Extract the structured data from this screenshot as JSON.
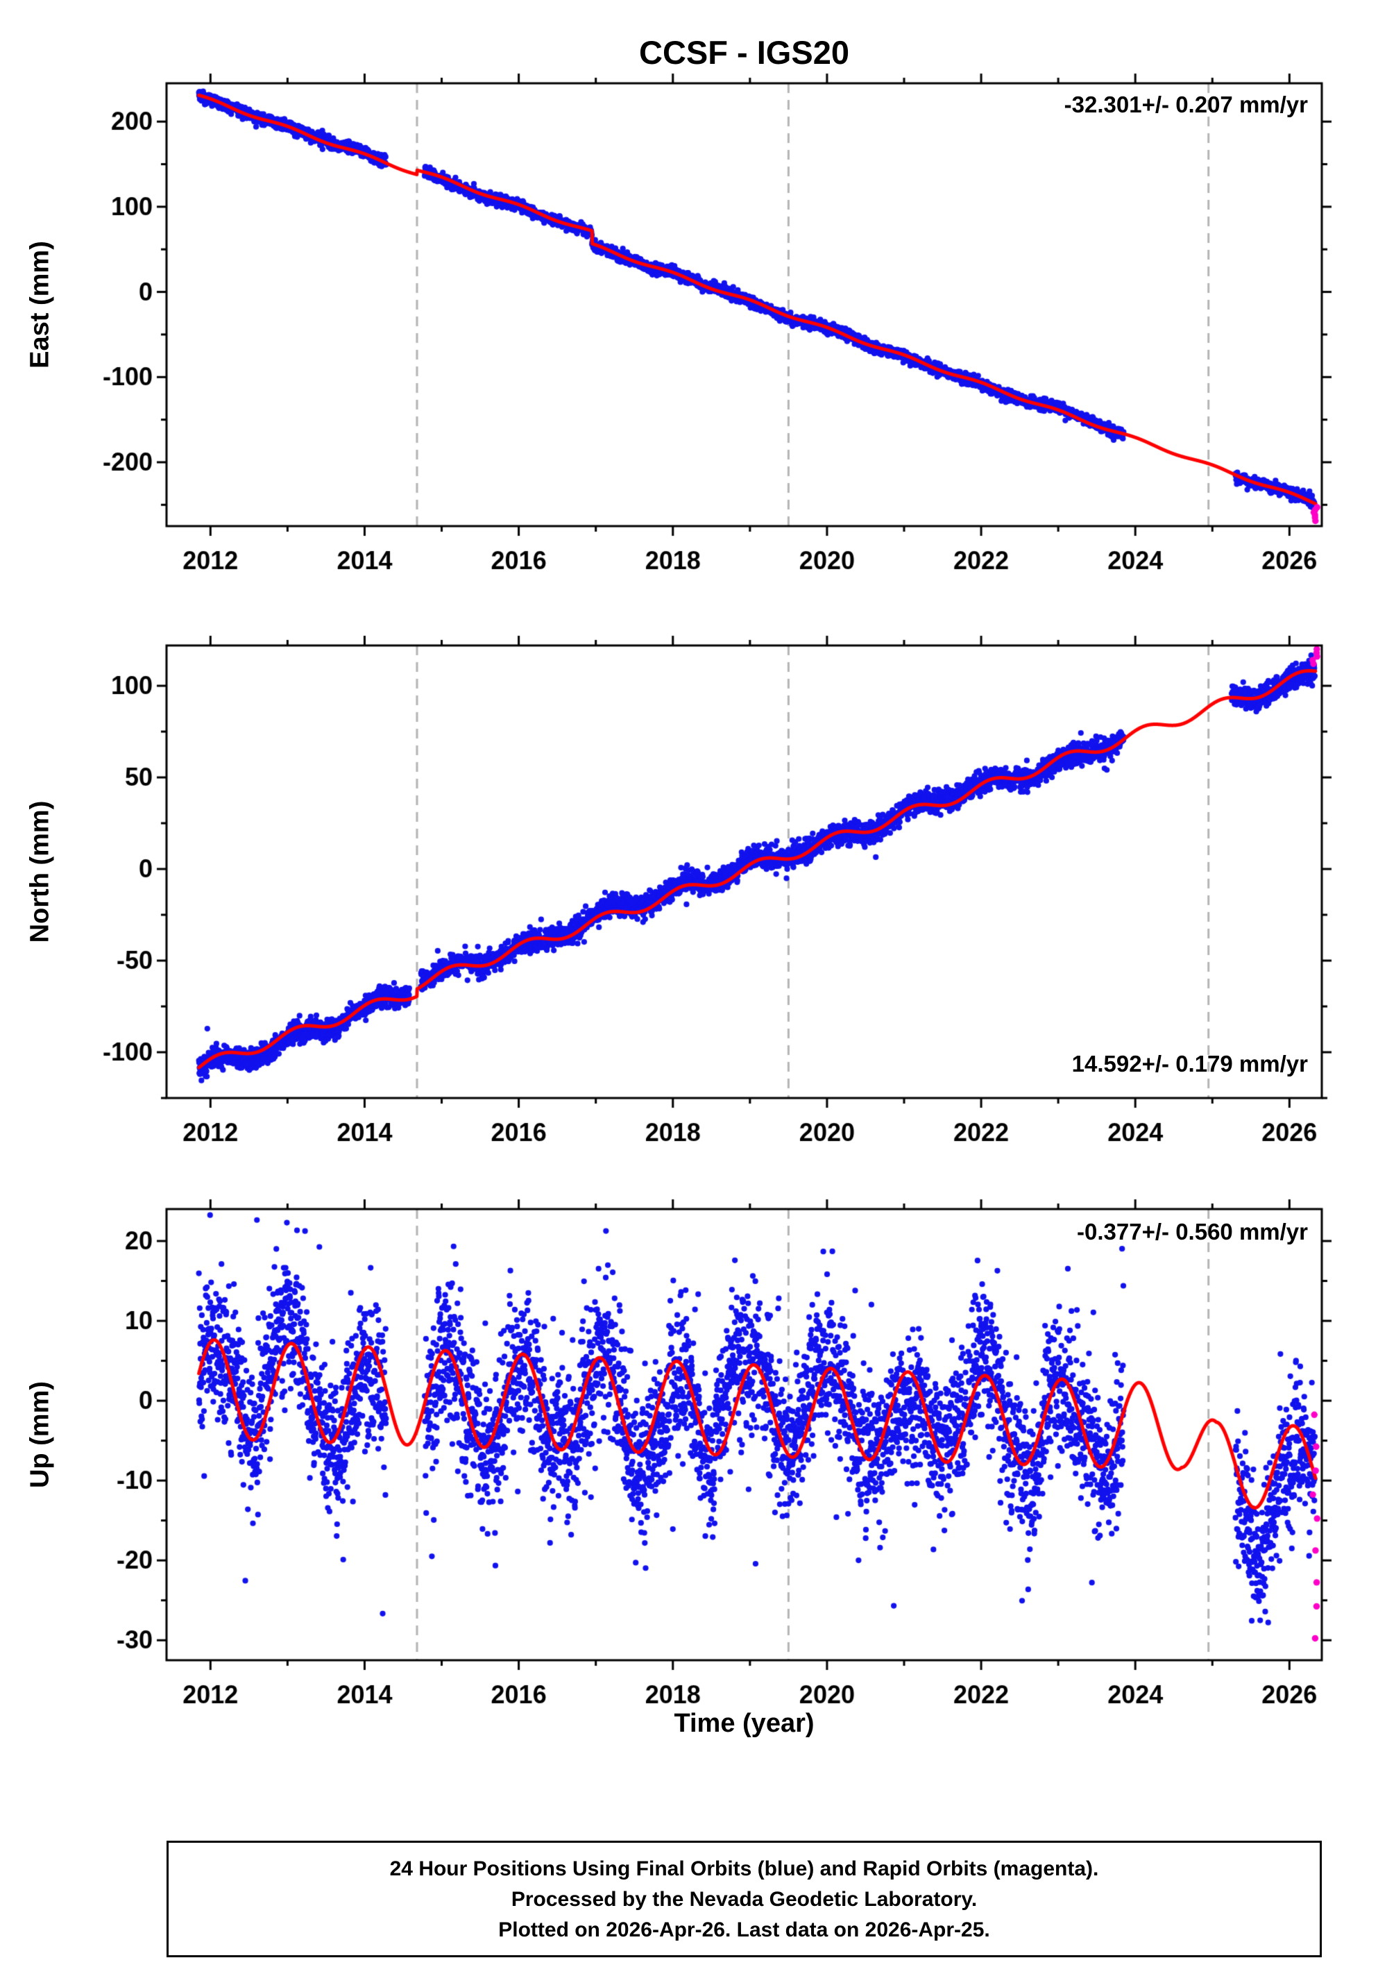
{
  "title": "CCSF - IGS20",
  "xlabel": "Time (year)",
  "footer": {
    "line1": "24 Hour Positions Using Final Orbits (blue) and Rapid Orbits (magenta).",
    "line2": "Processed by the Nevada Geodetic Laboratory.",
    "line3": "Plotted on 2026-Apr-26. Last data on 2026-Apr-25."
  },
  "colors": {
    "final": "#1212ee",
    "rapid": "#ff00c8",
    "trend": "#ff0000",
    "dashed": "#b4b4b4",
    "frame": "#000000",
    "text": "#000000",
    "background": "#ffffff"
  },
  "x_axis": {
    "lim": [
      2011.43,
      2026.42
    ],
    "tick_values": [
      2012,
      2014,
      2016,
      2018,
      2020,
      2022,
      2024,
      2026
    ],
    "tick_labels": [
      "2012",
      "2014",
      "2016",
      "2018",
      "2020",
      "2022",
      "2024",
      "2026"
    ],
    "minor_step": 1,
    "event_lines": [
      2014.68,
      2019.5,
      2024.95
    ]
  },
  "chart_data": [
    {
      "name": "east",
      "type": "scatter",
      "ylabel": "East (mm)",
      "ylim": [
        -275,
        245
      ],
      "ytick_values": [
        -200,
        -100,
        0,
        100,
        200
      ],
      "ytick_labels": [
        "-200",
        "-100",
        "0",
        "100",
        "200"
      ],
      "y_minor_step": 50,
      "trend_label": "-32.301+/- 0.207 mm/yr",
      "trend_label_corner": "top-right",
      "trend": {
        "t0": 2011.85,
        "intercept": 230,
        "slope": -32.301,
        "seasonal_amp": 1.6,
        "seasonal_amp_end": 1.6,
        "seasonal_phase": 0.0,
        "steps": [
          {
            "t": 2014.68,
            "dv": 5
          },
          {
            "t": 2016.95,
            "dv": -15
          }
        ]
      },
      "noise": {
        "sigma": 3.1,
        "walk": 0.12,
        "outlier_frac": 0.01,
        "outlier_sigma": 6
      },
      "blue_segments": [
        [
          2011.85,
          2014.28
        ],
        [
          2014.78,
          2023.85
        ],
        [
          2025.3,
          2026.33
        ]
      ],
      "red_range": [
        2011.85,
        2026.34
      ],
      "rapid_points": {
        "t_min": 2026.3,
        "t_max": 2026.36,
        "offsets": [
          -4,
          -7,
          -10,
          -13,
          -16,
          -20
        ]
      },
      "seed": 11
    },
    {
      "name": "north",
      "type": "scatter",
      "ylabel": "North (mm)",
      "ylim": [
        -125,
        122
      ],
      "ytick_values": [
        -100,
        -50,
        0,
        50,
        100
      ],
      "ytick_labels": [
        "-100",
        "-50",
        "0",
        "50",
        "100"
      ],
      "y_minor_step": 25,
      "trend_label": "14.592+/- 0.179 mm/yr",
      "trend_label_corner": "bottom-right",
      "trend": {
        "t0": 2011.85,
        "intercept": -108,
        "slope": 14.592,
        "seasonal_amp": 3.0,
        "seasonal_amp_end": 3.0,
        "seasonal_phase": 0.12,
        "steps": [
          {
            "t": 2014.68,
            "dv": 4
          }
        ]
      },
      "noise": {
        "sigma": 2.9,
        "walk": 0.12,
        "outlier_frac": 0.01,
        "outlier_sigma": 6
      },
      "blue_segments": [
        [
          2011.85,
          2014.58
        ],
        [
          2014.73,
          2023.85
        ],
        [
          2025.25,
          2026.33
        ]
      ],
      "red_range": [
        2011.85,
        2026.34
      ],
      "rapid_points": {
        "t_min": 2026.3,
        "t_max": 2026.36,
        "offsets": [
          4,
          6,
          8,
          10,
          12
        ]
      },
      "seed": 7
    },
    {
      "name": "up",
      "type": "scatter",
      "ylabel": "Up (mm)",
      "ylim": [
        -32.5,
        24
      ],
      "ytick_values": [
        -30,
        -20,
        -10,
        0,
        10,
        20
      ],
      "ytick_labels": [
        "-30",
        "-20",
        "-10",
        "0",
        "10",
        "20"
      ],
      "y_minor_step": 5,
      "trend_label": "-0.377+/- 0.560 mm/yr",
      "trend_label_corner": "top-right",
      "trend": {
        "t0": 2011.85,
        "intercept": 1.5,
        "slope": -0.377,
        "seasonal_amp": 6.2,
        "seasonal_amp_end": 5.2,
        "seasonal_phase": 0.05,
        "steps": [],
        "excursion": {
          "t": 2024.6,
          "rate": -10,
          "max": -4.5
        }
      },
      "noise": {
        "sigma": 4.3,
        "walk": 0.25,
        "outlier_frac": 0.07,
        "outlier_sigma": 8
      },
      "blue_segments": [
        [
          2011.85,
          2014.28
        ],
        [
          2014.78,
          2023.85
        ],
        [
          2025.3,
          2026.33
        ]
      ],
      "red_range": [
        2011.85,
        2026.34
      ],
      "rapid_points": {
        "t_min": 2026.3,
        "t_max": 2026.36,
        "offsets": [
          8,
          4,
          1,
          -2,
          -5,
          -9,
          -13,
          -16,
          -20
        ]
      },
      "seed": 3
    }
  ]
}
